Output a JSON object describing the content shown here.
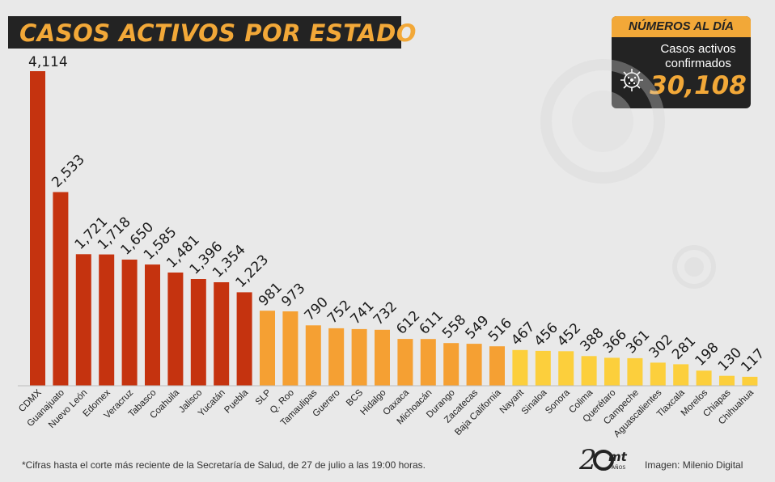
{
  "title": "CASOS ACTIVOS POR ESTADO",
  "summary": {
    "header": "NÚMEROS AL DÍA",
    "label_line1": "Casos activos",
    "label_line2": "confirmados",
    "value": "30,108",
    "icon": "virus-icon"
  },
  "footnote": "*Cifras hasta el corte más reciente de la Secretaría de Salud, de 27 de julio a las 19:00 horas.",
  "credit": "Imagen: Milenio Digital",
  "logo_text": "mt",
  "logo_sub": "AÑOS",
  "colors": {
    "background": "#e9e9e9",
    "dark": "#232323",
    "accent": "#f2a838",
    "tier1": "#c5330f",
    "tier2": "#f5a033",
    "tier3": "#fccf3c"
  },
  "chart_data": {
    "type": "bar",
    "categories": [
      "CDMX",
      "Guanajuato",
      "Nuevo León",
      "Edomex",
      "Veracruz",
      "Tabasco",
      "Coahuila",
      "Jalisco",
      "Yucatán",
      "Puebla",
      "SLP",
      "Q. Roo",
      "Tamaulipas",
      "Guerero",
      "BCS",
      "Hidalgo",
      "Oaxaca",
      "Michoacán",
      "Durango",
      "Zacatecas",
      "Baja California",
      "Nayarit",
      "Sinaloa",
      "Sonora",
      "Colima",
      "Querétaro",
      "Campeche",
      "Aguascalientes",
      "Tlaxcala",
      "Morelos",
      "Chiapas",
      "Chihuahua"
    ],
    "values": [
      4114,
      2533,
      1721,
      1718,
      1650,
      1585,
      1481,
      1396,
      1354,
      1223,
      981,
      973,
      790,
      752,
      741,
      732,
      612,
      611,
      558,
      549,
      516,
      467,
      456,
      452,
      388,
      366,
      361,
      302,
      281,
      198,
      130,
      117
    ],
    "value_labels": [
      "4,114",
      "2,533",
      "1,721",
      "1,718",
      "1,650",
      "1,585",
      "1,481",
      "1,396",
      "1,354",
      "1,223",
      "981",
      "973",
      "790",
      "752",
      "741",
      "732",
      "612",
      "611",
      "558",
      "549",
      "516",
      "467",
      "456",
      "452",
      "388",
      "366",
      "361",
      "302",
      "281",
      "198",
      "130",
      "117"
    ],
    "tiers": [
      1,
      1,
      1,
      1,
      1,
      1,
      1,
      1,
      1,
      1,
      2,
      2,
      2,
      2,
      2,
      2,
      2,
      2,
      2,
      2,
      2,
      3,
      3,
      3,
      3,
      3,
      3,
      3,
      3,
      3,
      3,
      3
    ],
    "ylim": [
      0,
      4114
    ],
    "grid": false,
    "legend": "none"
  }
}
